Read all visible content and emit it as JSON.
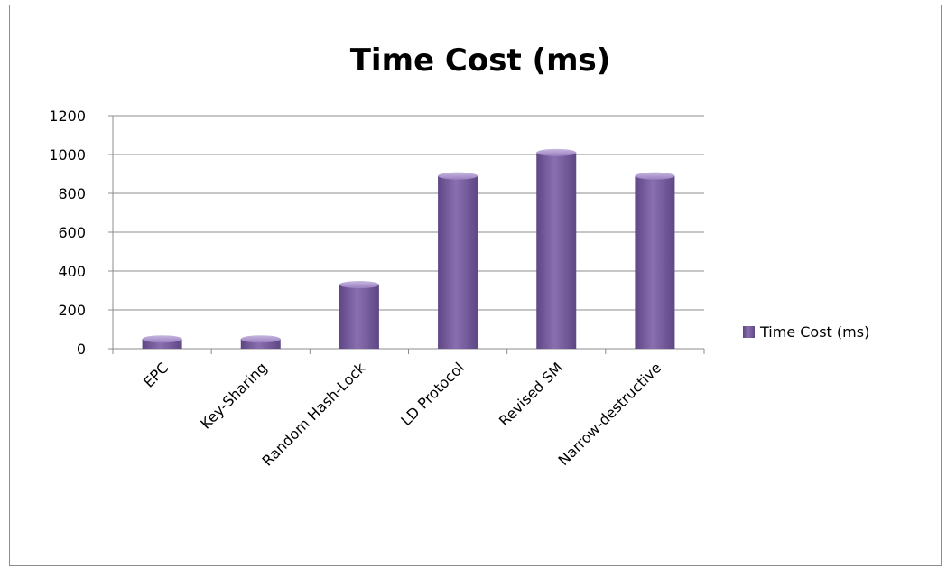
{
  "chart_data": {
    "type": "bar",
    "title": "Time Cost (ms)",
    "categories": [
      "EPC",
      "Key-Sharing",
      "Random Hash-Lock",
      "LD Protocol",
      "Revised SM",
      "Narrow-destructive"
    ],
    "series": [
      {
        "name": "Time Cost (ms)",
        "values": [
          50,
          50,
          330,
          890,
          1010,
          890
        ]
      }
    ],
    "yticks": [
      "0",
      "200",
      "400",
      "600",
      "800",
      "1000",
      "1200"
    ],
    "ylim": [
      0,
      1200
    ],
    "grid": true,
    "legend_position": "right",
    "bar_color": "#8064a2"
  }
}
